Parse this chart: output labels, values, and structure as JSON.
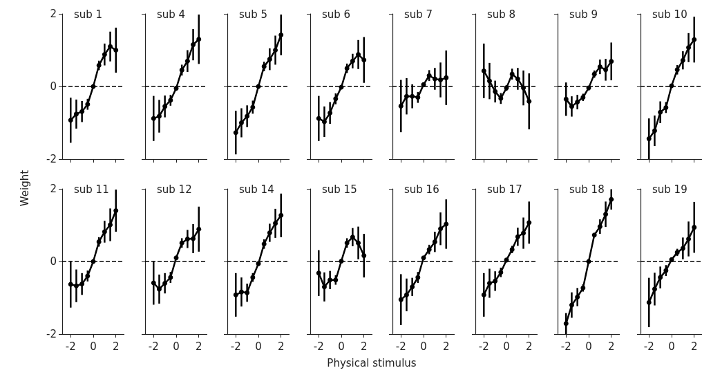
{
  "chart_data": [
    {
      "type": "line",
      "title": "sub 1",
      "ylabel": "Weight",
      "tick_labels": "y",
      "x": [
        -2,
        -1.5,
        -1,
        -0.5,
        0,
        0.5,
        1,
        1.5,
        2
      ],
      "values": [
        -0.93,
        -0.76,
        -0.69,
        -0.49,
        0,
        0.58,
        0.88,
        1.1,
        1.0
      ],
      "errors": [
        0.62,
        0.4,
        0.29,
        0.15,
        0.05,
        0.13,
        0.3,
        0.41,
        0.62
      ],
      "color": "#000000",
      "marker": "circle",
      "line_style": "solid",
      "xlim": [
        -2.75,
        2.75
      ],
      "xticks": [
        -2,
        0,
        2
      ],
      "ylim": [
        -2,
        2
      ],
      "yticks": [
        -2,
        0,
        2
      ],
      "ref_lines": [
        {
          "axis": "y",
          "value": 0,
          "line_style": "dashed",
          "color": "#000000"
        }
      ]
    },
    {
      "type": "line",
      "title": "sub 4",
      "tick_labels": false,
      "x": [
        -2,
        -1.5,
        -1,
        -0.5,
        0,
        0.5,
        1,
        1.5,
        2
      ],
      "values": [
        -0.88,
        -0.82,
        -0.55,
        -0.38,
        -0.05,
        0.45,
        0.7,
        1.15,
        1.3
      ],
      "errors": [
        0.62,
        0.45,
        0.3,
        0.15,
        0.05,
        0.15,
        0.3,
        0.43,
        0.68
      ],
      "color": "#000000",
      "marker": "circle",
      "line_style": "solid",
      "xlim": [
        -2.75,
        2.75
      ],
      "xticks": [
        -2,
        0,
        2
      ],
      "ylim": [
        -2,
        2
      ],
      "yticks": [
        -2,
        0,
        2
      ],
      "ref_lines": [
        {
          "axis": "y",
          "value": 0,
          "line_style": "dashed",
          "color": "#000000"
        }
      ]
    },
    {
      "type": "line",
      "title": "sub 5",
      "tick_labels": false,
      "x": [
        -2,
        -1.5,
        -1,
        -0.5,
        0,
        0.5,
        1,
        1.5,
        2
      ],
      "values": [
        -1.27,
        -1.0,
        -0.82,
        -0.57,
        0,
        0.55,
        0.75,
        1.0,
        1.42
      ],
      "errors": [
        0.6,
        0.4,
        0.3,
        0.18,
        0.05,
        0.13,
        0.3,
        0.4,
        0.56
      ],
      "color": "#000000",
      "marker": "circle",
      "line_style": "solid",
      "xlim": [
        -2.75,
        2.75
      ],
      "xticks": [
        -2,
        0,
        2
      ],
      "ylim": [
        -2,
        2
      ],
      "yticks": [
        -2,
        0,
        2
      ],
      "ref_lines": [
        {
          "axis": "y",
          "value": 0,
          "line_style": "dashed",
          "color": "#000000"
        }
      ]
    },
    {
      "type": "line",
      "title": "sub 6",
      "tick_labels": false,
      "x": [
        -2,
        -1.5,
        -1,
        -0.5,
        0,
        0.5,
        1,
        1.5,
        2
      ],
      "values": [
        -0.88,
        -0.97,
        -0.73,
        -0.34,
        -0.02,
        0.5,
        0.7,
        0.88,
        0.73
      ],
      "errors": [
        0.62,
        0.42,
        0.3,
        0.15,
        0.05,
        0.13,
        0.2,
        0.4,
        0.63
      ],
      "color": "#000000",
      "marker": "circle",
      "line_style": "solid",
      "xlim": [
        -2.75,
        2.75
      ],
      "xticks": [
        -2,
        0,
        2
      ],
      "ylim": [
        -2,
        2
      ],
      "yticks": [
        -2,
        0,
        2
      ],
      "ref_lines": [
        {
          "axis": "y",
          "value": 0,
          "line_style": "dashed",
          "color": "#000000"
        }
      ]
    },
    {
      "type": "line",
      "title": "sub 7",
      "tick_labels": false,
      "x": [
        -2,
        -1.5,
        -1,
        -0.5,
        0,
        0.5,
        1,
        1.5,
        2
      ],
      "values": [
        -0.54,
        -0.27,
        -0.27,
        -0.3,
        0.05,
        0.3,
        0.21,
        0.18,
        0.24
      ],
      "errors": [
        0.72,
        0.5,
        0.33,
        0.15,
        0.05,
        0.15,
        0.3,
        0.48,
        0.75
      ],
      "color": "#000000",
      "marker": "circle",
      "line_style": "solid",
      "xlim": [
        -2.75,
        2.75
      ],
      "xticks": [
        -2,
        0,
        2
      ],
      "ylim": [
        -2,
        2
      ],
      "yticks": [
        -2,
        0,
        2
      ],
      "ref_lines": [
        {
          "axis": "y",
          "value": 0,
          "line_style": "dashed",
          "color": "#000000"
        }
      ]
    },
    {
      "type": "line",
      "title": "sub 8",
      "tick_labels": false,
      "x": [
        -2,
        -1.5,
        -1,
        -0.5,
        0,
        0.5,
        1,
        1.5,
        2
      ],
      "values": [
        0.43,
        0.15,
        -0.14,
        -0.33,
        -0.04,
        0.34,
        0.21,
        -0.04,
        -0.41
      ],
      "errors": [
        0.75,
        0.5,
        0.3,
        0.15,
        0.08,
        0.15,
        0.3,
        0.48,
        0.77
      ],
      "color": "#000000",
      "marker": "circle",
      "line_style": "solid",
      "xlim": [
        -2.75,
        2.75
      ],
      "xticks": [
        -2,
        0,
        2
      ],
      "ylim": [
        -2,
        2
      ],
      "yticks": [
        -2,
        0,
        2
      ],
      "ref_lines": [
        {
          "axis": "y",
          "value": 0,
          "line_style": "dashed",
          "color": "#000000"
        }
      ]
    },
    {
      "type": "line",
      "title": "sub 9",
      "tick_labels": false,
      "x": [
        -2,
        -1.5,
        -1,
        -0.5,
        0,
        0.5,
        1,
        1.5,
        2
      ],
      "values": [
        -0.35,
        -0.55,
        -0.43,
        -0.3,
        -0.04,
        0.34,
        0.54,
        0.46,
        0.69
      ],
      "errors": [
        0.46,
        0.28,
        0.2,
        0.1,
        0.05,
        0.1,
        0.2,
        0.3,
        0.52
      ],
      "color": "#000000",
      "marker": "circle",
      "line_style": "solid",
      "xlim": [
        -2.75,
        2.75
      ],
      "xticks": [
        -2,
        0,
        2
      ],
      "ylim": [
        -2,
        2
      ],
      "yticks": [
        -2,
        0,
        2
      ],
      "ref_lines": [
        {
          "axis": "y",
          "value": 0,
          "line_style": "dashed",
          "color": "#000000"
        }
      ]
    },
    {
      "type": "line",
      "title": "sub 10",
      "tick_labels": false,
      "x": [
        -2,
        -1.5,
        -1,
        -0.5,
        0,
        0.5,
        1,
        1.5,
        2
      ],
      "values": [
        -1.44,
        -1.22,
        -0.71,
        -0.58,
        0.02,
        0.46,
        0.72,
        1.07,
        1.29
      ],
      "errors": [
        0.56,
        0.42,
        0.3,
        0.15,
        0.05,
        0.13,
        0.25,
        0.4,
        0.63
      ],
      "color": "#000000",
      "marker": "circle",
      "line_style": "solid",
      "xlim": [
        -2.75,
        2.75
      ],
      "xticks": [
        -2,
        0,
        2
      ],
      "ylim": [
        -2,
        2
      ],
      "yticks": [
        -2,
        0,
        2
      ],
      "ref_lines": [
        {
          "axis": "y",
          "value": 0,
          "line_style": "dashed",
          "color": "#000000"
        }
      ]
    },
    {
      "type": "line",
      "title": "sub 11",
      "x": [
        -2,
        -1.5,
        -1,
        -0.5,
        0,
        0.5,
        1,
        1.5,
        2
      ],
      "values": [
        -0.63,
        -0.67,
        -0.62,
        -0.4,
        0,
        0.54,
        0.82,
        1.01,
        1.4
      ],
      "errors": [
        0.64,
        0.45,
        0.3,
        0.15,
        0.05,
        0.13,
        0.3,
        0.45,
        0.58
      ],
      "color": "#000000",
      "marker": "circle",
      "line_style": "solid",
      "xlim": [
        -2.75,
        2.75
      ],
      "xticks": [
        -2,
        0,
        2
      ],
      "ylim": [
        -2,
        2
      ],
      "yticks": [
        -2,
        0,
        2
      ],
      "ref_lines": [
        {
          "axis": "y",
          "value": 0,
          "line_style": "dashed",
          "color": "#000000"
        }
      ]
    },
    {
      "type": "line",
      "title": "sub 12",
      "tick_labels": "x",
      "x": [
        -2,
        -1.5,
        -1,
        -0.5,
        0,
        0.5,
        1,
        1.5,
        2
      ],
      "values": [
        -0.59,
        -0.76,
        -0.6,
        -0.44,
        0.1,
        0.51,
        0.62,
        0.63,
        0.89
      ],
      "errors": [
        0.6,
        0.4,
        0.28,
        0.15,
        0.05,
        0.13,
        0.25,
        0.4,
        0.62
      ],
      "color": "#000000",
      "marker": "circle",
      "line_style": "solid",
      "xlim": [
        -2.75,
        2.75
      ],
      "xticks": [
        -2,
        0,
        2
      ],
      "ylim": [
        -2,
        2
      ],
      "yticks": [
        -2,
        0,
        2
      ],
      "ref_lines": [
        {
          "axis": "y",
          "value": 0,
          "line_style": "dashed",
          "color": "#000000"
        }
      ]
    },
    {
      "type": "line",
      "title": "sub 14",
      "tick_labels": "x",
      "x": [
        -2,
        -1.5,
        -1,
        -0.5,
        0,
        0.5,
        1,
        1.5,
        2
      ],
      "values": [
        -0.92,
        -0.84,
        -0.86,
        -0.44,
        -0.06,
        0.48,
        0.79,
        1.05,
        1.27
      ],
      "errors": [
        0.6,
        0.4,
        0.25,
        0.12,
        0.05,
        0.13,
        0.25,
        0.4,
        0.6
      ],
      "color": "#000000",
      "marker": "circle",
      "line_style": "solid",
      "xlim": [
        -2.75,
        2.75
      ],
      "xticks": [
        -2,
        0,
        2
      ],
      "ylim": [
        -2,
        2
      ],
      "yticks": [
        -2,
        0,
        2
      ],
      "ref_lines": [
        {
          "axis": "y",
          "value": 0,
          "line_style": "dashed",
          "color": "#000000"
        }
      ]
    },
    {
      "type": "line",
      "title": "sub 15",
      "tick_labels": "x",
      "x": [
        -2,
        -1.5,
        -1,
        -0.5,
        0,
        0.5,
        1,
        1.5,
        2
      ],
      "values": [
        -0.32,
        -0.7,
        -0.51,
        -0.51,
        0.01,
        0.51,
        0.67,
        0.51,
        0.16
      ],
      "errors": [
        0.63,
        0.4,
        0.25,
        0.13,
        0.05,
        0.13,
        0.25,
        0.45,
        0.6
      ],
      "color": "#000000",
      "marker": "circle",
      "line_style": "solid",
      "xlim": [
        -2.75,
        2.75
      ],
      "xticks": [
        -2,
        0,
        2
      ],
      "ylim": [
        -2,
        2
      ],
      "yticks": [
        -2,
        0,
        2
      ],
      "ref_lines": [
        {
          "axis": "y",
          "value": 0,
          "line_style": "dashed",
          "color": "#000000"
        }
      ]
    },
    {
      "type": "line",
      "title": "sub 16",
      "xlabel": "Physical stimulus",
      "tick_labels": "x",
      "x": [
        -2,
        -1.5,
        -1,
        -0.5,
        0,
        0.5,
        1,
        1.5,
        2
      ],
      "values": [
        -1.05,
        -0.92,
        -0.7,
        -0.44,
        0.1,
        0.33,
        0.54,
        0.9,
        1.03
      ],
      "errors": [
        0.7,
        0.45,
        0.25,
        0.15,
        0.05,
        0.13,
        0.28,
        0.45,
        0.68
      ],
      "color": "#000000",
      "marker": "circle",
      "line_style": "solid",
      "xlim": [
        -2.75,
        2.75
      ],
      "xticks": [
        -2,
        0,
        2
      ],
      "ylim": [
        -2,
        2
      ],
      "yticks": [
        -2,
        0,
        2
      ],
      "ref_lines": [
        {
          "axis": "y",
          "value": 0,
          "line_style": "dashed",
          "color": "#000000"
        }
      ]
    },
    {
      "type": "line",
      "title": "sub 17",
      "tick_labels": "x",
      "x": [
        -2,
        -1.5,
        -1,
        -0.5,
        0,
        0.5,
        1,
        1.5,
        2
      ],
      "values": [
        -0.92,
        -0.6,
        -0.54,
        -0.3,
        0.04,
        0.33,
        0.68,
        0.78,
        1.07
      ],
      "errors": [
        0.6,
        0.4,
        0.27,
        0.13,
        0.05,
        0.1,
        0.25,
        0.43,
        0.58
      ],
      "color": "#000000",
      "marker": "circle",
      "line_style": "solid",
      "xlim": [
        -2.75,
        2.75
      ],
      "xticks": [
        -2,
        0,
        2
      ],
      "ylim": [
        -2,
        2
      ],
      "yticks": [
        -2,
        0,
        2
      ],
      "ref_lines": [
        {
          "axis": "y",
          "value": 0,
          "line_style": "dashed",
          "color": "#000000"
        }
      ]
    },
    {
      "type": "line",
      "title": "sub 18",
      "tick_labels": "x",
      "x": [
        -2,
        -1.5,
        -1,
        -0.5,
        0,
        0.5,
        1,
        1.5,
        2
      ],
      "values": [
        -1.71,
        -1.2,
        -0.98,
        -0.73,
        0,
        0.73,
        0.96,
        1.3,
        1.71
      ],
      "errors": [
        0.29,
        0.35,
        0.25,
        0.1,
        0.05,
        0.05,
        0.2,
        0.35,
        0.28
      ],
      "color": "#000000",
      "marker": "circle",
      "line_style": "solid",
      "xlim": [
        -2.75,
        2.75
      ],
      "xticks": [
        -2,
        0,
        2
      ],
      "ylim": [
        -2,
        2
      ],
      "yticks": [
        -2,
        0,
        2
      ],
      "ref_lines": [
        {
          "axis": "y",
          "value": 0,
          "line_style": "dashed",
          "color": "#000000"
        }
      ]
    },
    {
      "type": "line",
      "title": "sub 19",
      "tick_labels": "x",
      "x": [
        -2,
        -1.5,
        -1,
        -0.5,
        0,
        0.5,
        1,
        1.5,
        2
      ],
      "values": [
        -1.13,
        -0.76,
        -0.44,
        -0.25,
        0.05,
        0.25,
        0.36,
        0.62,
        0.94
      ],
      "errors": [
        0.68,
        0.45,
        0.3,
        0.15,
        0.05,
        0.1,
        0.3,
        0.48,
        0.7
      ],
      "color": "#000000",
      "marker": "circle",
      "line_style": "solid",
      "xlim": [
        -2.75,
        2.75
      ],
      "xticks": [
        -2,
        0,
        2
      ],
      "ylim": [
        -2,
        2
      ],
      "yticks": [
        -2,
        0,
        2
      ],
      "ref_lines": [
        {
          "axis": "y",
          "value": 0,
          "line_style": "dashed",
          "color": "#000000"
        }
      ]
    }
  ]
}
